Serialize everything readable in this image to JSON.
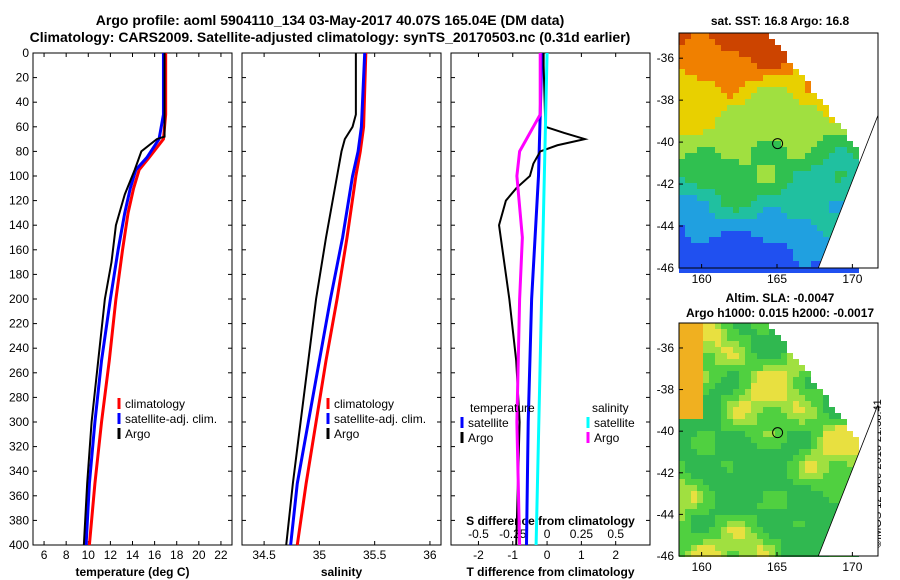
{
  "title_line1": "Argo profile: aoml 5904110_134 03-May-2017 40.07S 165.04E (DM data)",
  "title_line2": "Climatology: CARS2009. Satellite-adjusted climatology: synTS_20170503.nc (0.31d earlier)",
  "map_sst": {
    "title": "sat. SST: 16.8 Argo: 16.8",
    "xlabels": [
      "160",
      "165",
      "170"
    ],
    "ylabels": [
      "-36",
      "-38",
      "-40",
      "-42",
      "-44",
      "-46"
    ],
    "marker": {
      "lon": 165.04,
      "lat": -40.07
    }
  },
  "map_sla": {
    "title1": "Altim. SLA: -0.0047",
    "title2": "Argo h1000: 0.015 h2000: -0.0017",
    "xlabels": [
      "160",
      "165",
      "170"
    ],
    "ylabels": [
      "-36",
      "-38",
      "-40",
      "-42",
      "-44",
      "-46"
    ],
    "marker": {
      "lon": 165.04,
      "lat": -40.07
    }
  },
  "credit": "©IMOS 12-Dec-2018 21:38:41",
  "colors": {
    "climatology": "#ff0000",
    "satellite": "#0000ff",
    "argo": "#000000",
    "s_satellite": "#00ffff",
    "s_argo": "#ff00ff"
  },
  "chart_data": [
    {
      "type": "line",
      "xlabel": "temperature (deg C)",
      "ylabel": "depth",
      "xlim": [
        5,
        23
      ],
      "ylim": [
        400,
        0
      ],
      "xticks": [
        6,
        8,
        10,
        12,
        14,
        16,
        18,
        20,
        22
      ],
      "yticks": [
        0,
        20,
        40,
        60,
        80,
        100,
        120,
        140,
        160,
        180,
        200,
        220,
        240,
        260,
        280,
        300,
        320,
        340,
        360,
        380,
        400
      ],
      "legend": [
        "climatology",
        "satellite-adj. clim.",
        "Argo"
      ],
      "series": [
        {
          "name": "climatology",
          "depth": [
            0,
            50,
            70,
            85,
            95,
            110,
            130,
            160,
            200,
            250,
            300,
            350,
            400
          ],
          "values": [
            17,
            17,
            16.8,
            15.5,
            14.6,
            14.1,
            13.6,
            13.1,
            12.5,
            11.9,
            11.2,
            10.6,
            10.1
          ]
        },
        {
          "name": "satellite-adj. clim.",
          "depth": [
            0,
            50,
            70,
            85,
            95,
            110,
            130,
            160,
            200,
            250,
            300,
            350,
            400
          ],
          "values": [
            16.8,
            16.8,
            16.4,
            15.3,
            14.3,
            13.8,
            13.3,
            12.7,
            12.0,
            11.2,
            10.6,
            10.1,
            9.8
          ]
        },
        {
          "name": "Argo",
          "depth": [
            0,
            68,
            70,
            80,
            95,
            115,
            140,
            170,
            200,
            250,
            300,
            350,
            400
          ],
          "values": [
            16.9,
            16.9,
            16.2,
            14.8,
            14.2,
            13.3,
            12.5,
            12.1,
            11.5,
            10.9,
            10.3,
            9.9,
            9.6
          ]
        }
      ]
    },
    {
      "type": "line",
      "xlabel": "salinity",
      "xlim": [
        34.3,
        36.1
      ],
      "ylim": [
        400,
        0
      ],
      "xticks": [
        34.5,
        35,
        35.5,
        36
      ],
      "ticklabels": [
        "34.5",
        "35",
        "35.5",
        "36"
      ],
      "legend": [
        "climatology",
        "satellite-adj. clim.",
        "Argo"
      ],
      "series": [
        {
          "name": "climatology",
          "depth": [
            0,
            60,
            80,
            100,
            150,
            200,
            250,
            300,
            350,
            400
          ],
          "values": [
            35.42,
            35.4,
            35.37,
            35.33,
            35.25,
            35.16,
            35.06,
            34.97,
            34.88,
            34.8
          ],
          "color": "#ff0000"
        },
        {
          "name": "satellite-adj. clim.",
          "depth": [
            0,
            60,
            80,
            100,
            150,
            200,
            250,
            300,
            350,
            400
          ],
          "values": [
            35.41,
            35.38,
            35.35,
            35.3,
            35.21,
            35.1,
            35.0,
            34.9,
            34.8,
            34.74
          ],
          "color": "#0000ff"
        },
        {
          "name": "Argo",
          "depth": [
            0,
            10,
            50,
            60,
            70,
            80,
            100,
            150,
            200,
            250,
            300,
            350,
            400
          ],
          "values": [
            35.33,
            35.33,
            35.33,
            35.3,
            35.23,
            35.2,
            35.16,
            35.06,
            34.97,
            34.9,
            34.83,
            34.76,
            34.7
          ]
        }
      ]
    },
    {
      "type": "line",
      "xlabel": "T difference from climatology",
      "xlabel2": "S difference from climatology",
      "xlim": [
        -2.8,
        3
      ],
      "ylim": [
        400,
        0
      ],
      "xticks": [
        -2,
        -1,
        0,
        1,
        2
      ],
      "s_ticklabels": [
        "-0.5",
        "-0.25",
        "0",
        "0.25",
        "0.5"
      ],
      "legend_title_t": "temperature",
      "legend_title_s": "salinity",
      "legend_t": [
        "satellite",
        "Argo"
      ],
      "legend_s": [
        "satellite",
        "Argo"
      ],
      "series": [
        {
          "name": "T satellite",
          "depth": [
            0,
            100,
            200,
            300,
            400
          ],
          "values": [
            -0.15,
            -0.25,
            -0.45,
            -0.55,
            -0.6
          ]
        },
        {
          "name": "T Argo",
          "depth": [
            0,
            10,
            60,
            65,
            70,
            75,
            80,
            90,
            100,
            110,
            120,
            140,
            160,
            180,
            200,
            250,
            300,
            350,
            400
          ],
          "values": [
            -0.1,
            -0.1,
            -0.05,
            0.5,
            1.1,
            0.3,
            -0.2,
            -0.4,
            -0.5,
            -0.9,
            -1.2,
            -1.4,
            -1.3,
            -1.2,
            -1.1,
            -0.9,
            -0.8,
            -0.85,
            -0.9
          ]
        },
        {
          "name": "S satellite",
          "depth": [
            0,
            100,
            200,
            300,
            400
          ],
          "values": [
            0.0,
            -0.02,
            -0.04,
            -0.06,
            -0.08
          ]
        },
        {
          "name": "S Argo",
          "depth": [
            0,
            50,
            60,
            70,
            80,
            100,
            150,
            200,
            300,
            400
          ],
          "values": [
            -0.05,
            -0.05,
            -0.1,
            -0.15,
            -0.2,
            -0.22,
            -0.18,
            -0.2,
            -0.22,
            -0.2
          ]
        }
      ]
    }
  ]
}
